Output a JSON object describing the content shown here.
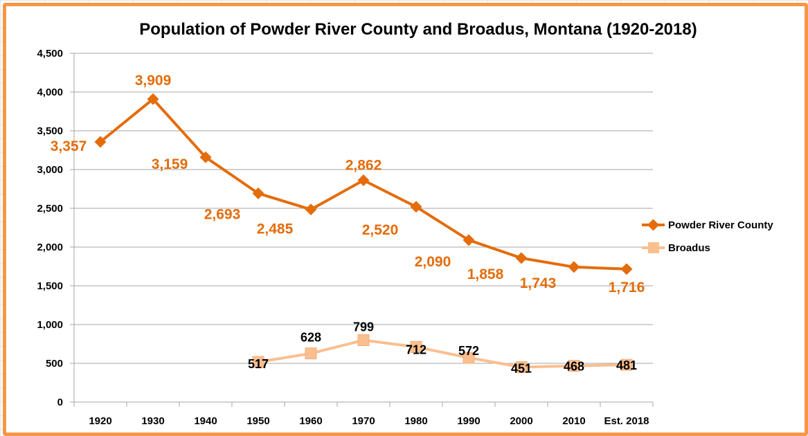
{
  "chart_data": {
    "type": "line",
    "title": "Population of Powder River County and Broadus, Montana (1920-2018)",
    "categories": [
      "1920",
      "1930",
      "1940",
      "1950",
      "1960",
      "1970",
      "1980",
      "1990",
      "2000",
      "2010",
      "Est. 2018"
    ],
    "y_ticks": [
      "0",
      "500",
      "1,000",
      "1,500",
      "2,000",
      "2,500",
      "3,000",
      "3,500",
      "4,000",
      "4,500"
    ],
    "ylim": [
      0,
      4500
    ],
    "grid": true,
    "legend_position": "right",
    "series": [
      {
        "name": "Powder River County",
        "color": "#e46c0a",
        "marker": "diamond",
        "values": [
          3357,
          3909,
          3159,
          2693,
          2485,
          2862,
          2520,
          2090,
          1858,
          1743,
          1716
        ],
        "labels": [
          "3,357",
          "3,909",
          "3,159",
          "2,693",
          "2,485",
          "2,862",
          "2,520",
          "2,090",
          "1,858",
          "1,743",
          "1,716"
        ]
      },
      {
        "name": "Broadus",
        "color": "#fabf8f",
        "marker": "square",
        "values": [
          null,
          null,
          null,
          517,
          628,
          799,
          712,
          572,
          451,
          468,
          481
        ],
        "labels": [
          "",
          "",
          "",
          "517",
          "628",
          "799",
          "712",
          "572",
          "451",
          "468",
          "481"
        ]
      }
    ]
  }
}
